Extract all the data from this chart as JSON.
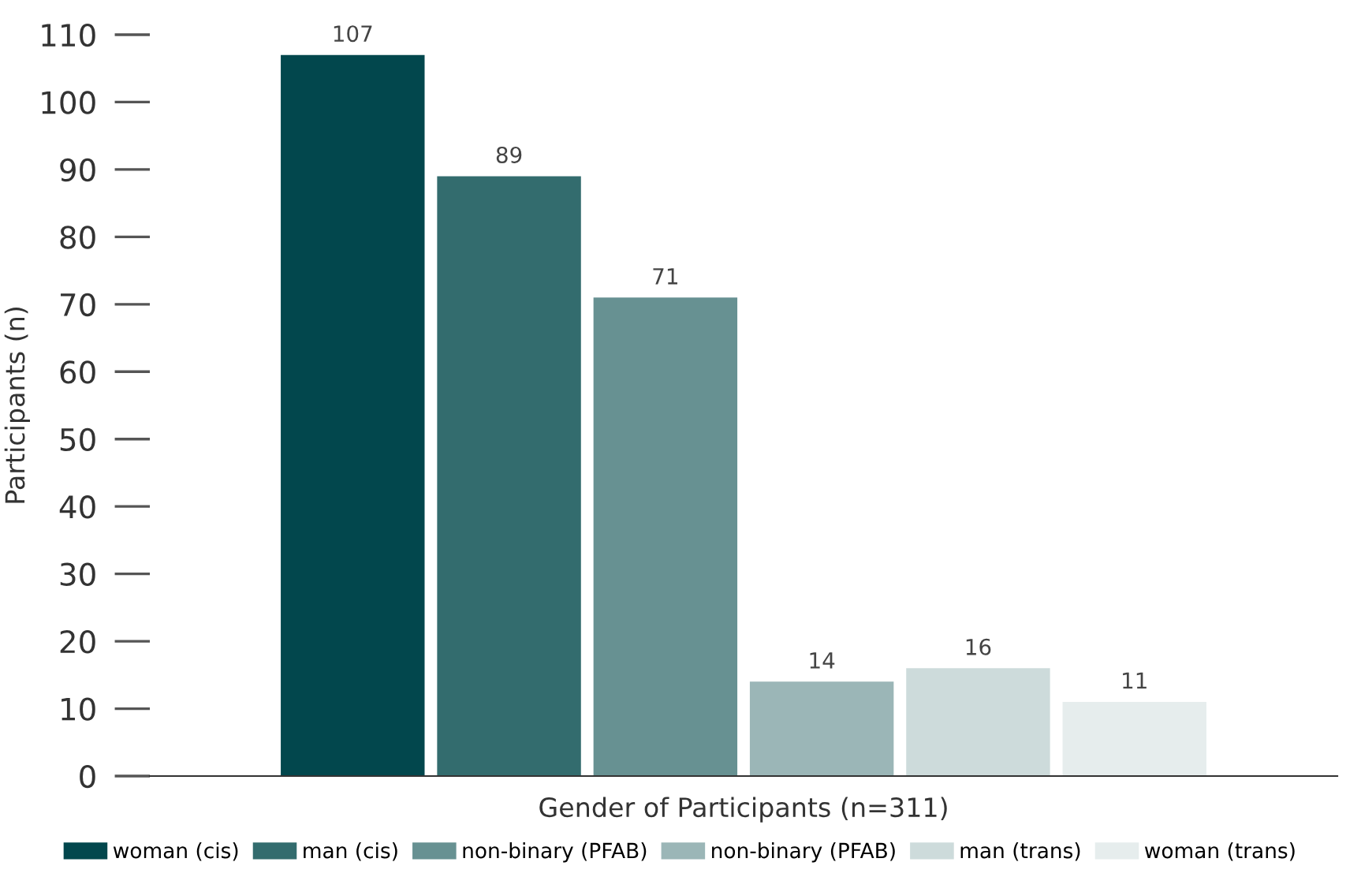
{
  "chart_data": {
    "type": "bar",
    "categories": [
      null
    ],
    "xlabel": "Gender of Participants (n=311)",
    "ylabel": "Participants (n)",
    "series": [
      {
        "name": "woman (cis)",
        "color": "#02474d",
        "values": [
          107
        ]
      },
      {
        "name": "man (cis)",
        "color": "#336c6e",
        "values": [
          89
        ]
      },
      {
        "name": "non-binary (PFAB)",
        "color": "#679192",
        "values": [
          71
        ]
      },
      {
        "name": "non-binary (PFAB)",
        "color": "#9bb6b7",
        "values": [
          14
        ]
      },
      {
        "name": "man (trans)",
        "color": "#cddbdb",
        "values": [
          16
        ]
      },
      {
        "name": "woman (trans)",
        "color": "#e6eded",
        "values": [
          11
        ]
      }
    ],
    "ylim": [
      0,
      110
    ],
    "yticks": [
      0,
      10,
      20,
      30,
      40,
      50,
      60,
      70,
      80,
      90,
      100,
      110
    ],
    "data_labels": true,
    "legend": "bottom",
    "grid": false
  }
}
